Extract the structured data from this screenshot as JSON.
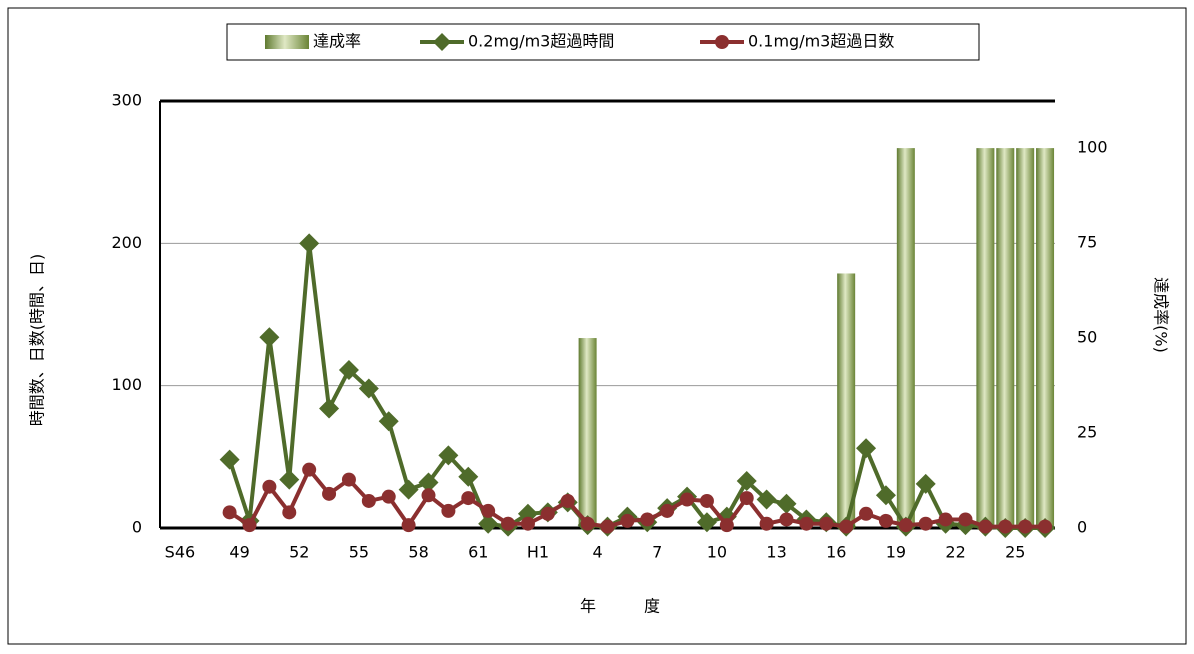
{
  "chart_data": {
    "type": "combo",
    "xlabel": "年　　　度",
    "ylabel": "時間数、日数(時間、日)",
    "y2label": "達成率(%)",
    "categories": [
      "S46",
      null,
      null,
      "49",
      null,
      null,
      "52",
      null,
      null,
      "55",
      null,
      null,
      "58",
      null,
      null,
      "61",
      null,
      null,
      "H1",
      null,
      null,
      "4",
      null,
      null,
      "7",
      null,
      null,
      "10",
      null,
      null,
      "13",
      null,
      null,
      "16",
      null,
      null,
      "19",
      null,
      null,
      "22",
      null,
      null,
      "25",
      null,
      null
    ],
    "ylim": [
      0,
      300
    ],
    "yticks": [
      0,
      100,
      200,
      300
    ],
    "y2lim": [
      0,
      112.4
    ],
    "y2ticks": [
      0,
      25,
      50,
      75,
      100
    ],
    "grid": true,
    "legend": "top",
    "series": [
      {
        "name": "達成率",
        "type": "bar",
        "axis": "y2",
        "color": "#8fa85a",
        "values": [
          null,
          null,
          null,
          null,
          null,
          null,
          null,
          null,
          null,
          null,
          null,
          null,
          null,
          null,
          null,
          null,
          null,
          null,
          null,
          null,
          null,
          50,
          null,
          null,
          null,
          null,
          null,
          null,
          null,
          null,
          null,
          null,
          null,
          null,
          67,
          null,
          null,
          100,
          null,
          null,
          null,
          100,
          100,
          100,
          100
        ]
      },
      {
        "name": "0.2mg/m3超過時間",
        "type": "line",
        "marker": "diamond",
        "color": "#4f6b2a",
        "values": [
          null,
          null,
          null,
          48,
          5,
          134,
          34,
          200,
          84,
          111,
          98,
          75,
          27,
          32,
          51,
          36,
          3,
          1,
          10,
          11,
          18,
          2,
          1,
          8,
          4,
          14,
          22,
          4,
          8,
          33,
          20,
          17,
          6,
          4,
          1,
          56,
          23,
          1,
          31,
          3,
          2,
          1,
          0,
          0,
          0
        ]
      },
      {
        "name": "0.1mg/m3超過日数",
        "type": "line",
        "marker": "circle",
        "color": "#8b2f2f",
        "values": [
          null,
          null,
          null,
          11,
          2,
          29,
          11,
          41,
          24,
          34,
          19,
          22,
          2,
          23,
          12,
          21,
          12,
          3,
          3,
          10,
          19,
          3,
          1,
          5,
          6,
          12,
          20,
          19,
          2,
          21,
          3,
          6,
          3,
          3,
          1,
          10,
          5,
          2,
          3,
          6,
          6,
          1,
          1,
          1,
          1
        ]
      }
    ]
  }
}
